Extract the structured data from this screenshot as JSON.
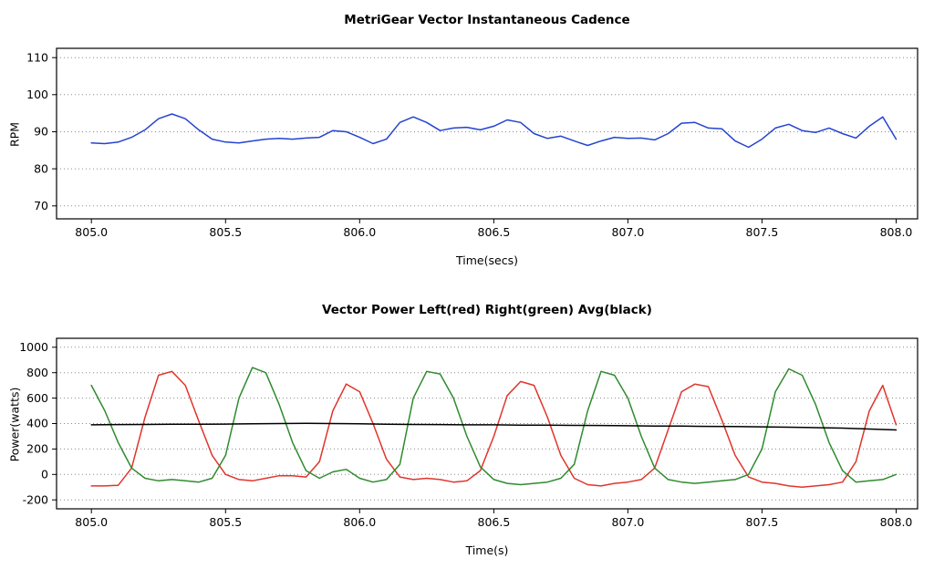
{
  "page": {
    "background": "#ffffff"
  },
  "chart_data": [
    {
      "type": "line",
      "title": "MetriGear Vector Instantaneous Cadence",
      "xlabel": "Time(secs)",
      "ylabel": "RPM",
      "xlim": [
        804.87,
        808.08
      ],
      "ylim": [
        66.5,
        112.5
      ],
      "xticks": [
        805.0,
        805.5,
        806.0,
        806.5,
        807.0,
        807.5,
        808.0
      ],
      "xtick_labels": [
        "805.0",
        "805.5",
        "806.0",
        "806.5",
        "807.0",
        "807.5",
        "808.0"
      ],
      "yticks": [
        70,
        80,
        90,
        100,
        110
      ],
      "ytick_labels": [
        "70",
        "80",
        "90",
        "100",
        "110"
      ],
      "grid": "horizontal-dotted",
      "legend": "none",
      "series": [
        {
          "name": "cadence",
          "color": "#2443cf",
          "x_start": 805.0,
          "x_step": 0.05,
          "y": [
            87,
            86.8,
            87.2,
            88.5,
            90.5,
            93.5,
            94.8,
            93.5,
            90.5,
            88,
            87.2,
            87,
            87.5,
            88,
            88.2,
            88,
            88.3,
            88.5,
            90.3,
            90,
            88.5,
            86.8,
            88,
            92.5,
            94,
            92.5,
            90.3,
            91,
            91.2,
            90.5,
            91.5,
            93.2,
            92.5,
            89.5,
            88.2,
            88.8,
            87.5,
            86.3,
            87.5,
            88.5,
            88.2,
            88.3,
            87.8,
            89.5,
            92.3,
            92.5,
            91,
            90.8,
            87.5,
            85.8,
            88,
            91,
            92,
            90.3,
            89.8,
            91,
            89.5,
            88.3,
            91.5,
            94,
            88
          ]
        }
      ]
    },
    {
      "type": "line",
      "title": "Vector Power Left(red) Right(green) Avg(black)",
      "xlabel": "Time(s)",
      "ylabel": "Power(watts)",
      "xlim": [
        804.87,
        808.08
      ],
      "ylim": [
        -270,
        1070
      ],
      "xticks": [
        805.0,
        805.5,
        806.0,
        806.5,
        807.0,
        807.5,
        808.0
      ],
      "xtick_labels": [
        "805.0",
        "805.5",
        "806.0",
        "806.5",
        "807.0",
        "807.5",
        "808.0"
      ],
      "yticks": [
        -200,
        0,
        200,
        400,
        600,
        800,
        1000
      ],
      "ytick_labels": [
        "-200",
        "0",
        "200",
        "400",
        "600",
        "800",
        "1000"
      ],
      "grid": "horizontal-dotted",
      "legend": "in-title",
      "series": [
        {
          "name": "left-power",
          "color": "#e0352b",
          "x_start": 805.0,
          "x_step": 0.05,
          "y": [
            -90,
            -90,
            -85,
            50,
            450,
            780,
            810,
            700,
            420,
            150,
            0,
            -40,
            -50,
            -30,
            -10,
            -10,
            -20,
            100,
            500,
            710,
            650,
            400,
            120,
            -20,
            -40,
            -30,
            -40,
            -60,
            -50,
            30,
            300,
            620,
            730,
            700,
            450,
            150,
            -30,
            -80,
            -90,
            -70,
            -60,
            -40,
            50,
            350,
            650,
            710,
            690,
            430,
            150,
            -20,
            -60,
            -70,
            -90,
            -100,
            -90,
            -80,
            -60,
            100,
            500,
            700,
            390
          ]
        },
        {
          "name": "right-power",
          "color": "#2e8b2e",
          "x_start": 805.0,
          "x_step": 0.05,
          "y": [
            700,
            500,
            250,
            50,
            -30,
            -50,
            -40,
            -50,
            -60,
            -30,
            150,
            600,
            840,
            800,
            550,
            250,
            30,
            -30,
            20,
            40,
            -30,
            -60,
            -40,
            80,
            600,
            810,
            790,
            600,
            300,
            60,
            -40,
            -70,
            -80,
            -70,
            -60,
            -30,
            80,
            500,
            810,
            780,
            600,
            300,
            50,
            -40,
            -60,
            -70,
            -60,
            -50,
            -40,
            0,
            200,
            650,
            830,
            780,
            550,
            250,
            30,
            -60,
            -50,
            -40,
            0
          ]
        },
        {
          "name": "avg-power",
          "color": "#000000",
          "x_start": 805.0,
          "x_step": 0.1,
          "y": [
            390,
            392,
            393,
            394,
            395,
            396,
            398,
            400,
            402,
            400,
            398,
            395,
            393,
            392,
            390,
            390,
            388,
            387,
            386,
            385,
            383,
            381,
            380,
            378,
            376,
            374,
            371,
            368,
            364,
            357,
            350
          ]
        }
      ]
    }
  ]
}
